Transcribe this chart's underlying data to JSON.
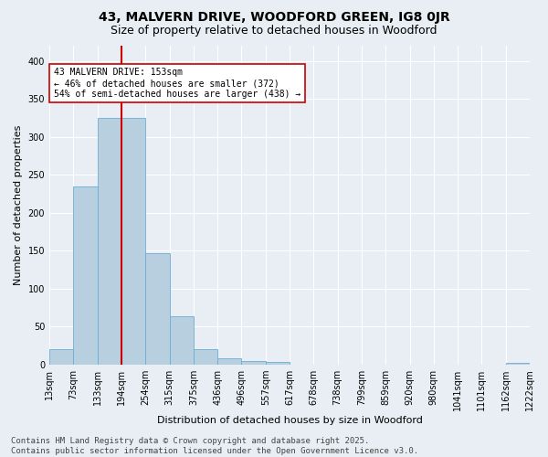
{
  "title1": "43, MALVERN DRIVE, WOODFORD GREEN, IG8 0JR",
  "title2": "Size of property relative to detached houses in Woodford",
  "xlabel": "Distribution of detached houses by size in Woodford",
  "ylabel": "Number of detached properties",
  "bar_values": [
    20,
    235,
    325,
    325,
    147,
    64,
    20,
    8,
    5,
    4,
    0,
    0,
    0,
    0,
    0,
    0,
    0,
    0,
    0,
    2
  ],
  "bar_labels": [
    "13sqm",
    "73sqm",
    "133sqm",
    "194sqm",
    "254sqm",
    "315sqm",
    "375sqm",
    "436sqm",
    "496sqm",
    "557sqm",
    "617sqm",
    "678sqm",
    "738sqm",
    "799sqm",
    "859sqm",
    "920sqm",
    "980sqm",
    "1041sqm",
    "1101sqm",
    "1162sqm",
    "1222sqm"
  ],
  "bar_color": "#b8cfe0",
  "bar_edge_color": "#6aaed6",
  "vline_color": "#cc0000",
  "vline_x_index": 2,
  "ylim": [
    0,
    420
  ],
  "yticks": [
    0,
    50,
    100,
    150,
    200,
    250,
    300,
    350,
    400
  ],
  "annotation_text": "43 MALVERN DRIVE: 153sqm\n← 46% of detached houses are smaller (372)\n54% of semi-detached houses are larger (438) →",
  "annotation_box_facecolor": "#ffffff",
  "annotation_box_edgecolor": "#cc0000",
  "footer": "Contains HM Land Registry data © Crown copyright and database right 2025.\nContains public sector information licensed under the Open Government Licence v3.0.",
  "background_color": "#e8eef4",
  "grid_color": "#ffffff",
  "title1_fontsize": 10,
  "title2_fontsize": 9,
  "tick_fontsize": 7,
  "ylabel_fontsize": 8,
  "xlabel_fontsize": 8,
  "annotation_fontsize": 7,
  "footer_fontsize": 6.5
}
